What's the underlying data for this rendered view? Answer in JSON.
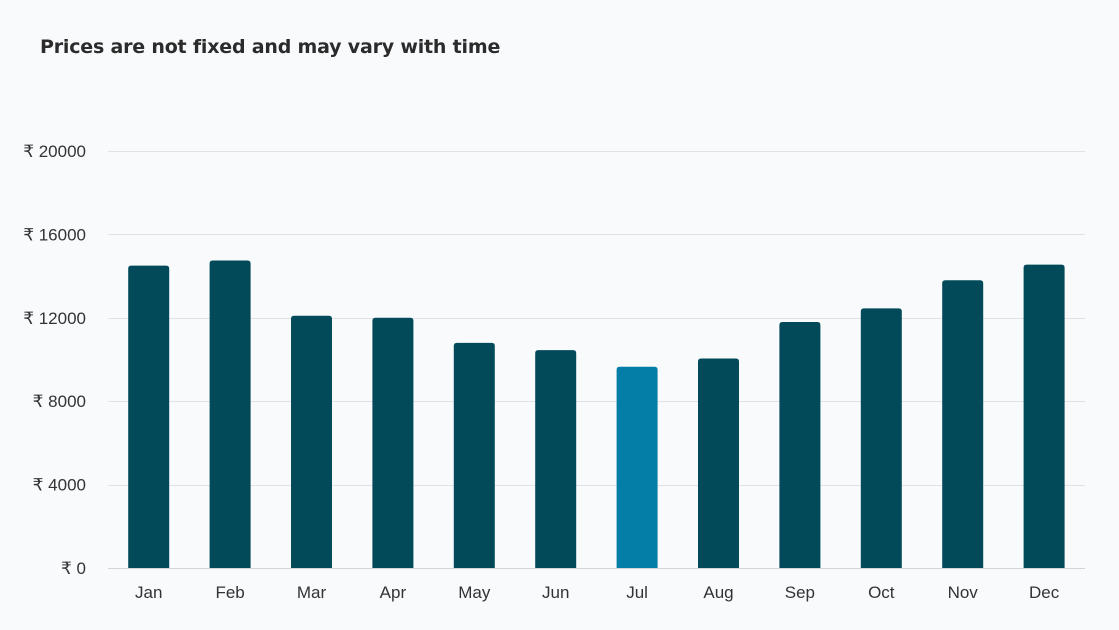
{
  "chart_data": {
    "type": "bar",
    "title": "Prices are not fixed and may vary with time",
    "xlabel": "",
    "ylabel": "",
    "categories": [
      "Jan",
      "Feb",
      "Mar",
      "Apr",
      "May",
      "Jun",
      "Jul",
      "Aug",
      "Sep",
      "Oct",
      "Nov",
      "Dec"
    ],
    "values": [
      14500,
      14750,
      12100,
      12000,
      10800,
      10450,
      9650,
      10050,
      11800,
      12450,
      13800,
      14550
    ],
    "highlight_index": 6,
    "ylim": [
      0,
      20000
    ],
    "yticks": [
      0,
      4000,
      8000,
      12000,
      16000,
      20000
    ],
    "ytick_labels": [
      "₹ 0",
      "₹ 4000",
      "₹ 8000",
      "₹ 12000",
      "₹ 16000",
      "₹ 20000"
    ],
    "grid": true,
    "legend": "none",
    "colors": {
      "bar": "#024a5a",
      "highlight": "#047ea6",
      "grid": "#dfe3e8",
      "background": "#f8fafc"
    }
  }
}
